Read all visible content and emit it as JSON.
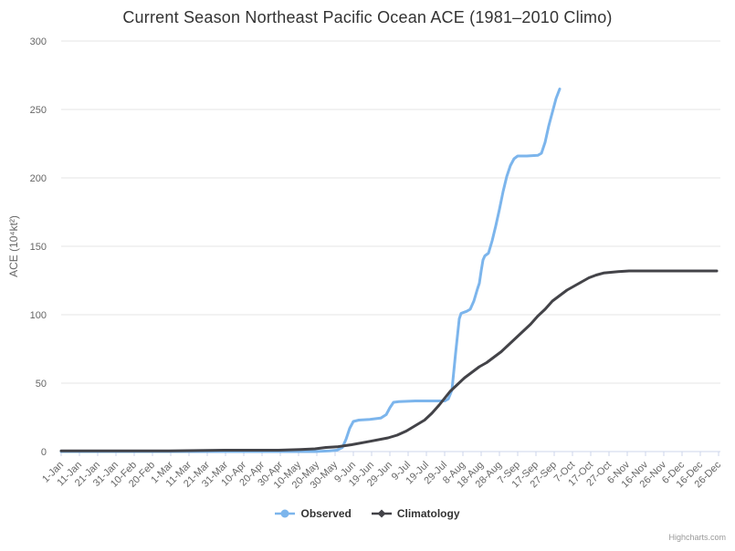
{
  "credits": {
    "label": "Highcharts.com"
  },
  "chart_data": {
    "type": "line",
    "title": "Current Season Northeast Pacific Ocean ACE (1981–2010 Climo)",
    "xlabel": "",
    "ylabel": "ACE (10⁴kt²)",
    "ylim": [
      0,
      300
    ],
    "yticks": [
      0,
      50,
      100,
      150,
      200,
      250,
      300
    ],
    "grid": true,
    "legend_position": "bottom",
    "x_tick_labels": [
      "1-Jan",
      "11-Jan",
      "21-Jan",
      "31-Jan",
      "10-Feb",
      "20-Feb",
      "1-Mar",
      "11-Mar",
      "21-Mar",
      "31-Mar",
      "10-Apr",
      "20-Apr",
      "30-Apr",
      "10-May",
      "20-May",
      "30-May",
      "9-Jun",
      "19-Jun",
      "29-Jun",
      "9-Jul",
      "19-Jul",
      "29-Jul",
      "8-Aug",
      "18-Aug",
      "28-Aug",
      "7-Sep",
      "17-Sep",
      "27-Sep",
      "7-Oct",
      "17-Oct",
      "27-Oct",
      "6-Nov",
      "16-Nov",
      "26-Nov",
      "6-Dec",
      "16-Dec",
      "26-Dec"
    ],
    "x_tick_interval_days": 10,
    "colors": {
      "grid": "#e6e6e6",
      "axis_line": "#ccd6eb",
      "tick": "#ccd6eb",
      "labels": "#666666",
      "title": "#333333"
    },
    "series": [
      {
        "name": "Observed",
        "color": "#7cb5ec",
        "marker": "circle",
        "points": [
          [
            1,
            0
          ],
          [
            20,
            0
          ],
          [
            40,
            0
          ],
          [
            60,
            0
          ],
          [
            80,
            0
          ],
          [
            100,
            0
          ],
          [
            120,
            0
          ],
          [
            140,
            0
          ],
          [
            148,
            0.5
          ],
          [
            152,
            1
          ],
          [
            155,
            3
          ],
          [
            157,
            9
          ],
          [
            159,
            17
          ],
          [
            161,
            22
          ],
          [
            164,
            23
          ],
          [
            170,
            23.5
          ],
          [
            176,
            24.5
          ],
          [
            179,
            27
          ],
          [
            181,
            32
          ],
          [
            183,
            36
          ],
          [
            186,
            36.5
          ],
          [
            195,
            37
          ],
          [
            205,
            37
          ],
          [
            211,
            37
          ],
          [
            213,
            38.5
          ],
          [
            215,
            45
          ],
          [
            217,
            72
          ],
          [
            219,
            97
          ],
          [
            220,
            101
          ],
          [
            223,
            102.5
          ],
          [
            225,
            104
          ],
          [
            227,
            110
          ],
          [
            229,
            119
          ],
          [
            230,
            123
          ],
          [
            231,
            132
          ],
          [
            232,
            140
          ],
          [
            233,
            143
          ],
          [
            235,
            145
          ],
          [
            237,
            154
          ],
          [
            239,
            165
          ],
          [
            241,
            177
          ],
          [
            243,
            190
          ],
          [
            245,
            201
          ],
          [
            247,
            209
          ],
          [
            249,
            214
          ],
          [
            251,
            216
          ],
          [
            256,
            216
          ],
          [
            262,
            216.5
          ],
          [
            264,
            218
          ],
          [
            266,
            226
          ],
          [
            268,
            238
          ],
          [
            270,
            248
          ],
          [
            272,
            258
          ],
          [
            274,
            265
          ]
        ]
      },
      {
        "name": "Climatology",
        "color": "#434348",
        "marker": "diamond",
        "points": [
          [
            1,
            0.5
          ],
          [
            30,
            0.5
          ],
          [
            60,
            0.5
          ],
          [
            90,
            1
          ],
          [
            120,
            1
          ],
          [
            132,
            1.5
          ],
          [
            140,
            2
          ],
          [
            146,
            3
          ],
          [
            152,
            3.5
          ],
          [
            160,
            5
          ],
          [
            170,
            7.5
          ],
          [
            180,
            10
          ],
          [
            185,
            12
          ],
          [
            190,
            15
          ],
          [
            195,
            19
          ],
          [
            200,
            23
          ],
          [
            204,
            28
          ],
          [
            208,
            34
          ],
          [
            211,
            39
          ],
          [
            214,
            44
          ],
          [
            218,
            49
          ],
          [
            222,
            54
          ],
          [
            226,
            58
          ],
          [
            230,
            62
          ],
          [
            234,
            65
          ],
          [
            238,
            69
          ],
          [
            242,
            73
          ],
          [
            246,
            78
          ],
          [
            250,
            83
          ],
          [
            254,
            88
          ],
          [
            258,
            93
          ],
          [
            262,
            99
          ],
          [
            266,
            104
          ],
          [
            270,
            110
          ],
          [
            274,
            114
          ],
          [
            278,
            118
          ],
          [
            282,
            121
          ],
          [
            286,
            124
          ],
          [
            290,
            127
          ],
          [
            294,
            129
          ],
          [
            298,
            130.5
          ],
          [
            302,
            131
          ],
          [
            306,
            131.5
          ],
          [
            312,
            132
          ],
          [
            320,
            132
          ],
          [
            330,
            132
          ],
          [
            340,
            132
          ],
          [
            350,
            132
          ],
          [
            360,
            132
          ]
        ]
      }
    ]
  }
}
